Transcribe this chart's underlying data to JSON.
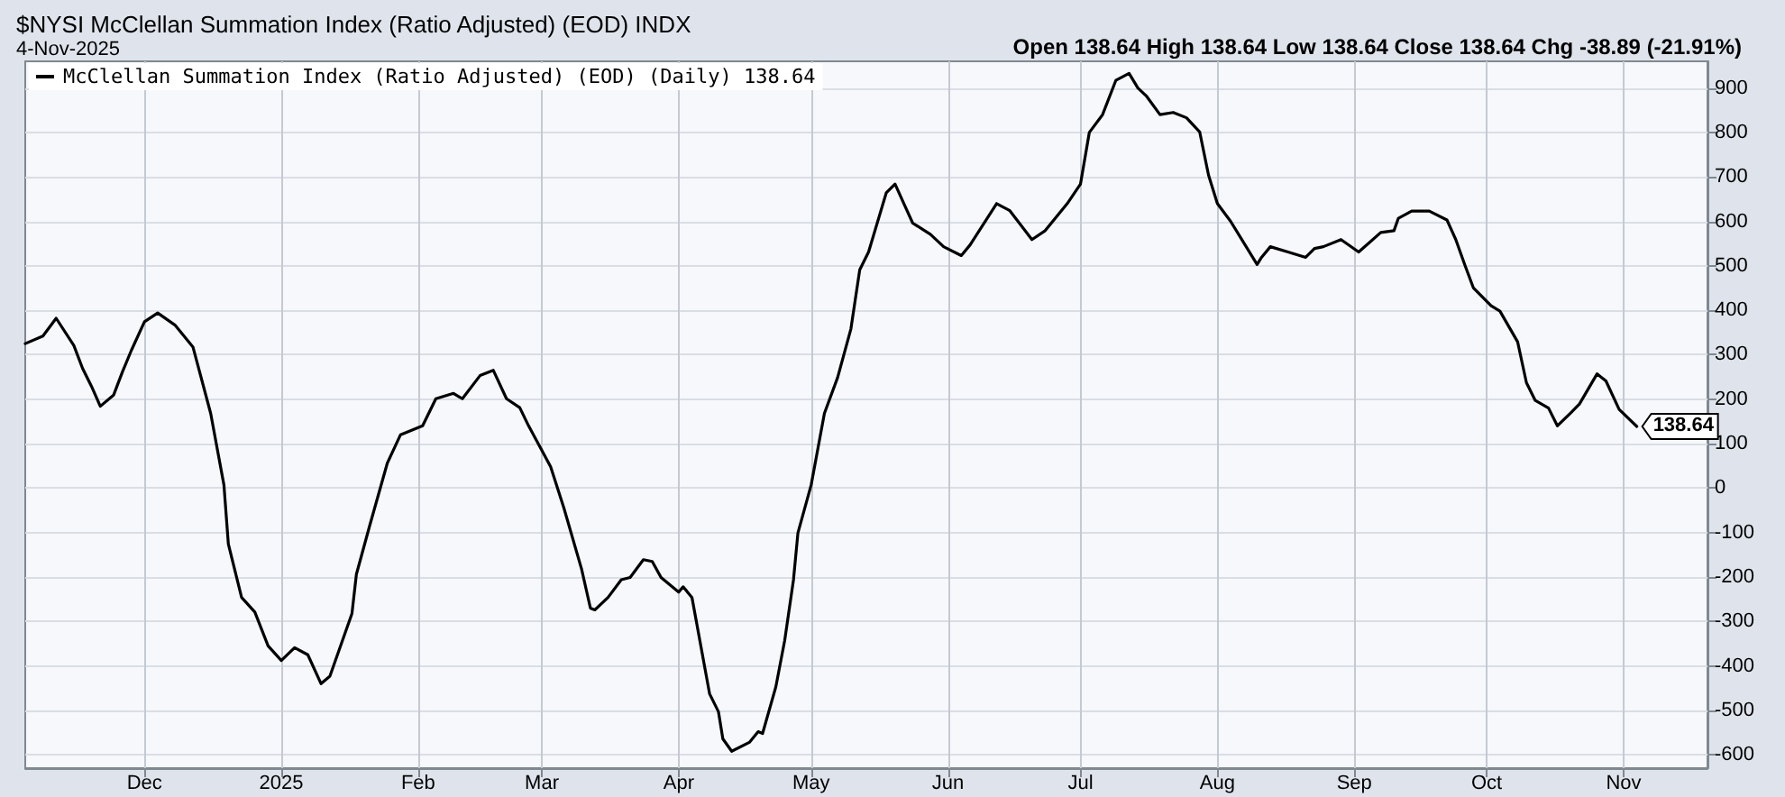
{
  "chart_data": {
    "type": "line",
    "title": "$NYSI McClellan Summation Index (Ratio Adjusted) (EOD) INDX",
    "subtitle": "4-Nov-2025",
    "annotations": [
      "Open 138.64 High 138.64 Low 138.64 Close 138.64 Chg -38.89 (-21.91%)",
      {
        "text": "138.64",
        "x": "2025-11-04",
        "y": 138.64
      }
    ],
    "x": [
      "2024-11-04",
      "2024-11-08",
      "2024-11-11",
      "2024-11-15",
      "2024-11-17",
      "2024-11-19",
      "2024-11-21",
      "2024-11-24",
      "2024-11-26",
      "2024-11-28",
      "2024-12-01",
      "2024-12-04",
      "2024-12-08",
      "2024-12-12",
      "2024-12-16",
      "2024-12-19",
      "2024-12-20",
      "2024-12-23",
      "2024-12-26",
      "2024-12-29",
      "2025-01-01",
      "2025-01-04",
      "2025-01-07",
      "2025-01-10",
      "2025-01-12",
      "2025-01-17",
      "2025-01-18",
      "2025-01-21",
      "2025-01-25",
      "2025-01-28",
      "2025-02-01",
      "2025-02-02",
      "2025-02-05",
      "2025-02-09",
      "2025-02-11",
      "2025-02-15",
      "2025-02-18",
      "2025-02-21",
      "2025-02-24",
      "2025-02-26",
      "2025-03-03",
      "2025-03-06",
      "2025-03-10",
      "2025-03-12",
      "2025-03-13",
      "2025-03-16",
      "2025-03-19",
      "2025-03-21",
      "2025-03-24",
      "2025-03-26",
      "2025-03-28",
      "2025-04-01",
      "2025-04-02",
      "2025-04-04",
      "2025-04-08",
      "2025-04-10",
      "2025-04-11",
      "2025-04-13",
      "2025-04-17",
      "2025-04-19",
      "2025-04-20",
      "2025-04-23",
      "2025-04-25",
      "2025-04-27",
      "2025-04-28",
      "2025-05-01",
      "2025-05-04",
      "2025-05-07",
      "2025-05-10",
      "2025-05-12",
      "2025-05-14",
      "2025-05-18",
      "2025-05-20",
      "2025-05-22",
      "2025-05-24",
      "2025-05-28",
      "2025-05-31",
      "2025-06-04",
      "2025-06-06",
      "2025-06-12",
      "2025-06-15",
      "2025-06-20",
      "2025-06-23",
      "2025-06-28",
      "2025-07-01",
      "2025-07-03",
      "2025-07-06",
      "2025-07-09",
      "2025-07-12",
      "2025-07-14",
      "2025-07-16",
      "2025-07-19",
      "2025-07-22",
      "2025-07-25",
      "2025-07-28",
      "2025-07-30",
      "2025-08-01",
      "2025-08-04",
      "2025-08-10",
      "2025-08-11",
      "2025-08-13",
      "2025-08-17",
      "2025-08-21",
      "2025-08-23",
      "2025-08-25",
      "2025-08-29",
      "2025-09-02",
      "2025-09-07",
      "2025-09-10",
      "2025-09-11",
      "2025-09-14",
      "2025-09-18",
      "2025-09-22",
      "2025-09-24",
      "2025-09-26",
      "2025-09-28",
      "2025-10-02",
      "2025-10-04",
      "2025-10-08",
      "2025-10-10",
      "2025-10-12",
      "2025-10-15",
      "2025-10-17",
      "2025-10-20",
      "2025-10-22",
      "2025-10-26",
      "2025-10-28",
      "2025-10-31",
      "2025-11-04"
    ],
    "series": [
      {
        "name": "McClellan Summation Index (Ratio Adjusted) (EOD) (Daily) 138.64",
        "color": "#000000",
        "values": [
          325,
          342,
          382,
          321,
          269,
          229,
          184,
          209,
          261,
          309,
          374,
          394,
          366,
          317,
          168,
          7,
          -126,
          -246,
          -279,
          -355,
          -388,
          -359,
          -375,
          -440,
          -423,
          -282,
          -194,
          -85,
          56,
          120,
          136,
          140,
          201,
          213,
          201,
          253,
          265,
          201,
          181,
          140,
          48,
          -45,
          -182,
          -270,
          -274,
          -246,
          -206,
          -201,
          -161,
          -165,
          -201,
          -234,
          -222,
          -246,
          -463,
          -503,
          -564,
          -592,
          -572,
          -548,
          -552,
          -447,
          -343,
          -206,
          -101,
          7,
          168,
          249,
          358,
          491,
          531,
          664,
          684,
          640,
          596,
          571,
          543,
          523,
          547,
          640,
          624,
          559,
          579,
          640,
          684,
          800,
          840,
          917,
          933,
          900,
          881,
          840,
          845,
          833,
          801,
          704,
          640,
          600,
          503,
          519,
          543,
          531,
          519,
          539,
          543,
          559,
          531,
          575,
          579,
          607,
          623,
          623,
          603,
          559,
          503,
          450,
          410,
          398,
          329,
          237,
          197,
          180,
          140,
          169,
          189,
          257,
          241,
          177,
          138.64
        ]
      }
    ],
    "xlim": [
      "2024-11-04",
      "2025-11-20"
    ],
    "xticks": [
      {
        "value": "2024-12-01",
        "label": "Dec"
      },
      {
        "value": "2025-01-01",
        "label": "2025"
      },
      {
        "value": "2025-02-01",
        "label": "Feb"
      },
      {
        "value": "2025-03-01",
        "label": "Mar"
      },
      {
        "value": "2025-04-01",
        "label": "Apr"
      },
      {
        "value": "2025-05-01",
        "label": "May"
      },
      {
        "value": "2025-06-01",
        "label": "Jun"
      },
      {
        "value": "2025-07-01",
        "label": "Jul"
      },
      {
        "value": "2025-08-01",
        "label": "Aug"
      },
      {
        "value": "2025-09-01",
        "label": "Sep"
      },
      {
        "value": "2025-10-01",
        "label": "Oct"
      },
      {
        "value": "2025-11-01",
        "label": "Nov"
      }
    ],
    "ylim": [
      -630,
      960
    ],
    "yticks": [
      -600,
      -500,
      -400,
      -300,
      -200,
      -100,
      0,
      100,
      200,
      300,
      400,
      500,
      600,
      700,
      800,
      900
    ],
    "grid": true,
    "legend": "top left",
    "marker": "none",
    "line_style": "solid"
  }
}
